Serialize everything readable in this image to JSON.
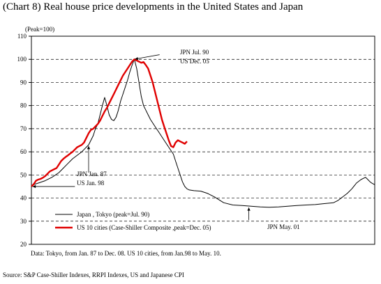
{
  "chart_data": {
    "type": "line",
    "title": "(Chart 8) Real house price developments in the United States and Japan",
    "ylabel": "(Peak=100)",
    "ylim": [
      20,
      110
    ],
    "yticks": [
      20,
      30,
      40,
      50,
      60,
      70,
      80,
      90,
      100,
      110
    ],
    "grid": "horizontal dashed",
    "legend_position": "bottom-left",
    "series": [
      {
        "name": "Japan , Tokyo (peak=Jul. 90)",
        "color": "#000000",
        "points": [
          [
            0,
            45.5
          ],
          [
            3,
            46.5
          ],
          [
            6,
            47.5
          ],
          [
            9,
            49
          ],
          [
            12,
            51
          ],
          [
            14,
            53
          ],
          [
            16,
            55
          ],
          [
            18,
            57
          ],
          [
            20,
            58.5
          ],
          [
            22,
            60
          ],
          [
            23,
            61
          ],
          [
            24,
            62
          ],
          [
            25,
            63
          ],
          [
            26,
            65
          ],
          [
            27,
            67
          ],
          [
            28,
            70
          ],
          [
            29,
            72
          ],
          [
            30,
            76
          ],
          [
            31,
            80
          ],
          [
            32,
            83.5
          ],
          [
            33,
            80
          ],
          [
            34,
            76
          ],
          [
            35,
            74
          ],
          [
            36,
            73.5
          ],
          [
            37,
            75
          ],
          [
            38,
            78
          ],
          [
            39,
            82
          ],
          [
            40,
            85
          ],
          [
            41,
            88
          ],
          [
            42,
            91
          ],
          [
            43,
            94.5
          ],
          [
            44,
            97.5
          ],
          [
            45,
            100
          ],
          [
            46,
            96
          ],
          [
            47,
            90
          ],
          [
            48,
            84
          ],
          [
            49,
            80
          ],
          [
            50,
            78
          ],
          [
            51,
            76
          ],
          [
            52,
            74
          ],
          [
            54,
            71
          ],
          [
            56,
            68
          ],
          [
            58,
            65
          ],
          [
            60,
            62
          ],
          [
            62,
            59
          ],
          [
            63,
            56
          ],
          [
            64,
            53
          ],
          [
            65,
            50
          ],
          [
            66,
            47
          ],
          [
            67,
            45
          ],
          [
            68,
            44
          ],
          [
            69,
            43.5
          ],
          [
            71,
            43.2
          ],
          [
            74,
            43
          ],
          [
            77,
            42
          ],
          [
            80,
            40.5
          ],
          [
            84,
            38
          ],
          [
            88,
            37
          ],
          [
            92,
            36.8
          ],
          [
            96,
            36.5
          ],
          [
            100,
            36.2
          ],
          [
            104,
            36
          ],
          [
            108,
            36.2
          ],
          [
            112,
            36.5
          ],
          [
            116,
            36.8
          ],
          [
            120,
            37
          ],
          [
            124,
            37.2
          ],
          [
            128,
            37.6
          ],
          [
            132,
            38
          ],
          [
            134,
            39
          ],
          [
            136,
            40.5
          ],
          [
            138,
            42
          ],
          [
            140,
            44
          ],
          [
            142,
            46.5
          ],
          [
            144,
            48
          ],
          [
            145,
            48.5
          ],
          [
            146,
            49
          ],
          [
            147,
            48
          ],
          [
            148,
            47
          ],
          [
            149,
            46.3
          ],
          [
            150,
            45.8
          ]
        ]
      },
      {
        "name": "US 10 cities (Case-Shiller Composite ,peak=Dec. 05)",
        "color": "#e00000",
        "points": [
          [
            0,
            45
          ],
          [
            1,
            46
          ],
          [
            2,
            47.5
          ],
          [
            3,
            48
          ],
          [
            4,
            48.3
          ],
          [
            5,
            48.8
          ],
          [
            6,
            49.5
          ],
          [
            7,
            50.5
          ],
          [
            8,
            51.5
          ],
          [
            9,
            52
          ],
          [
            10,
            52.5
          ],
          [
            11,
            53
          ],
          [
            12,
            54.5
          ],
          [
            13,
            56
          ],
          [
            14,
            57
          ],
          [
            15,
            57.8
          ],
          [
            16,
            58.5
          ],
          [
            17,
            59.3
          ],
          [
            18,
            60
          ],
          [
            19,
            61
          ],
          [
            20,
            62
          ],
          [
            21,
            62.5
          ],
          [
            22,
            63
          ],
          [
            23,
            64
          ],
          [
            24,
            66
          ],
          [
            25,
            68
          ],
          [
            26,
            69.5
          ],
          [
            27,
            70
          ],
          [
            28,
            71
          ],
          [
            29,
            72
          ],
          [
            30,
            73.5
          ],
          [
            31,
            75.5
          ],
          [
            32,
            77.5
          ],
          [
            33,
            79
          ],
          [
            34,
            81
          ],
          [
            35,
            83
          ],
          [
            36,
            85
          ],
          [
            37,
            87
          ],
          [
            38,
            89
          ],
          [
            39,
            91
          ],
          [
            40,
            93
          ],
          [
            41,
            94.5
          ],
          [
            42,
            96
          ],
          [
            43,
            97.5
          ],
          [
            44,
            99
          ],
          [
            45,
            100
          ],
          [
            46,
            99.5
          ],
          [
            47,
            99
          ],
          [
            48,
            98.5
          ],
          [
            49,
            98.8
          ],
          [
            50,
            97.5
          ],
          [
            51,
            96
          ],
          [
            52,
            93
          ],
          [
            53,
            90
          ],
          [
            54,
            86
          ],
          [
            55,
            82
          ],
          [
            56,
            78
          ],
          [
            57,
            74
          ],
          [
            58,
            71
          ],
          [
            59,
            68
          ],
          [
            60,
            65
          ],
          [
            61,
            62.5
          ],
          [
            62,
            62
          ],
          [
            63,
            64
          ],
          [
            64,
            65
          ],
          [
            65,
            64.5
          ],
          [
            66,
            64
          ],
          [
            67,
            63.5
          ],
          [
            68,
            64.5
          ]
        ]
      }
    ],
    "annotations": [
      {
        "lines": [
          "JPN Jul. 90",
          "US Dec. 05"
        ]
      },
      {
        "lines": [
          "JPN Jan. 87",
          "US Jan. 98"
        ]
      },
      {
        "lines": [
          "JPN May. 01"
        ]
      }
    ],
    "note": "Data: Tokyo, from Jan. 87 to Dec. 08.  US 10 cities,  from Jan.98 to May. 10.",
    "source": "Source: S&P Case-Shiller Indexes, RRPI Indexes, US and Japanese CPI"
  }
}
